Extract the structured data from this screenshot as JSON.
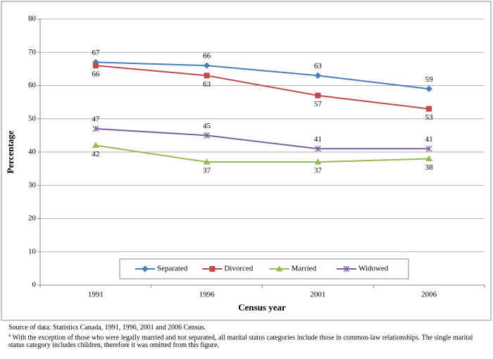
{
  "chart_data": {
    "type": "line",
    "x_label": "Census year",
    "y_label": "Percentage",
    "categories": [
      "1991",
      "1996",
      "2001",
      "2006"
    ],
    "series": [
      {
        "name": "Separated",
        "color": "#4a7ebb",
        "marker": "diamond",
        "label_position": "above",
        "values": [
          67,
          66,
          63,
          59
        ]
      },
      {
        "name": "Divorced",
        "color": "#be4b48",
        "marker": "square",
        "label_position": "below",
        "values": [
          66,
          63,
          57,
          53
        ]
      },
      {
        "name": "Married",
        "color": "#98b954",
        "marker": "triangle",
        "label_position": "below",
        "values": [
          42,
          37,
          37,
          38
        ]
      },
      {
        "name": "Widowed",
        "color": "#7d60a0",
        "marker": "cross",
        "label_position": "above",
        "values": [
          47,
          45,
          41,
          41
        ]
      }
    ],
    "ylim": [
      0,
      80
    ],
    "yticks": [
      0,
      10,
      20,
      30,
      40,
      50,
      60,
      70,
      80
    ],
    "grid": true,
    "legend": "bottom"
  },
  "footnotes": {
    "source": "Source of data:  Statistics Canada, 1991, 1996, 2001 and 2006 Census.",
    "marker": "a",
    "note": "With the exception of those who were legally married and not separated, all marital status categories include those in common-law relationships. The single marital status category includes children, therefore it was omitted from this figure."
  }
}
